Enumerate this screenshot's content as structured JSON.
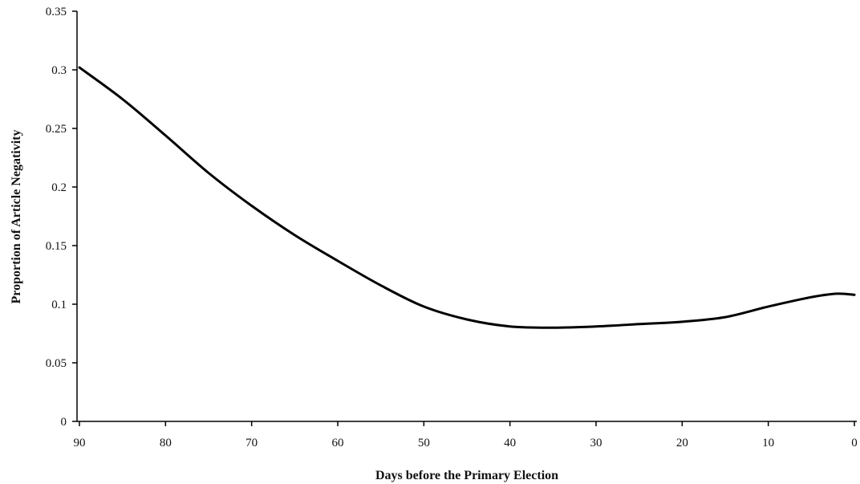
{
  "chart_data": {
    "type": "line",
    "title": "",
    "xlabel": "Days before the Primary Election",
    "ylabel": "Proportion of Article Negativity",
    "xlim": [
      90,
      0
    ],
    "ylim": [
      0,
      0.35
    ],
    "x_ticks": [
      90,
      80,
      70,
      60,
      50,
      40,
      30,
      20,
      10,
      0
    ],
    "x_tick_labels": [
      "90",
      "80",
      "70",
      "60",
      "50",
      "40",
      "30",
      "20",
      "10",
      "0"
    ],
    "y_ticks": [
      0,
      0.05,
      0.1,
      0.15,
      0.2,
      0.25,
      0.3,
      0.35
    ],
    "y_tick_labels": [
      "0",
      "0.05",
      "0.1",
      "0.15",
      "0.2",
      "0.25",
      "0.3",
      "0.35"
    ],
    "grid": false,
    "legend": "none",
    "line_color": "#000000",
    "series": [
      {
        "x": [
          90,
          85,
          80,
          75,
          70,
          65,
          60,
          55,
          50,
          45,
          40,
          35,
          30,
          25,
          20,
          15,
          10,
          5,
          2,
          0
        ],
        "y": [
          0.302,
          0.275,
          0.244,
          0.212,
          0.184,
          0.159,
          0.137,
          0.116,
          0.098,
          0.087,
          0.081,
          0.08,
          0.081,
          0.083,
          0.085,
          0.089,
          0.098,
          0.106,
          0.109,
          0.108
        ]
      }
    ]
  }
}
